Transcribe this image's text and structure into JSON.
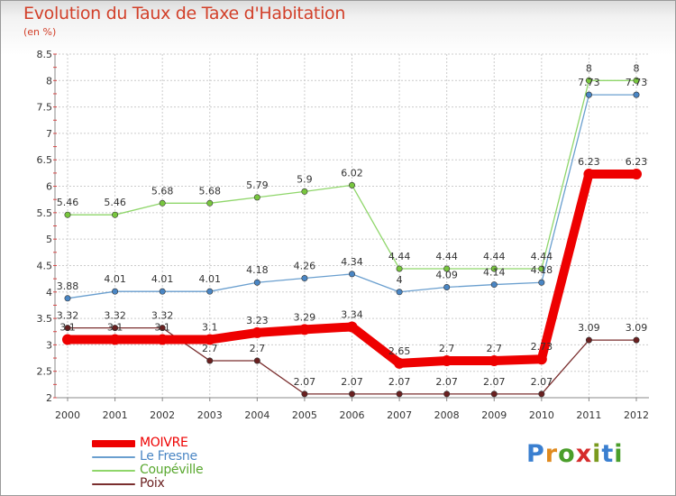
{
  "title": "Evolution du Taux de Taxe d'Habitation",
  "unit_label": "(en %)",
  "logo": {
    "text": "Proxiti",
    "letters": [
      "P",
      "r",
      "o",
      "x",
      "i",
      "t",
      "i"
    ],
    "letter_colors": [
      "#3a7fd0",
      "#e08a1e",
      "#4a9e2a",
      "#d62c2c",
      "#7a9a1e",
      "#3a7fd0",
      "#4a9e2a"
    ]
  },
  "chart_data": {
    "type": "line",
    "title": "Evolution du Taux de Taxe d'Habitation",
    "ylabel": "(en %)",
    "xlabel": "",
    "x": [
      "2000",
      "2001",
      "2002",
      "2003",
      "2004",
      "2005",
      "2006",
      "2007",
      "2008",
      "2009",
      "2010",
      "2011",
      "2012"
    ],
    "ylim": [
      2,
      8.5
    ],
    "yticks": [
      "2",
      "2.5",
      "3",
      "3.5",
      "4",
      "4.5",
      "5",
      "5.5",
      "6",
      "6.5",
      "7",
      "7.5",
      "8",
      "8.5"
    ],
    "grid": true,
    "legend_position": "bottom-left",
    "series": [
      {
        "name": "Coupéville",
        "color": "#8fd66a",
        "marker_color": "#78c63e",
        "values": [
          5.46,
          5.46,
          5.68,
          5.68,
          5.79,
          5.9,
          6.02,
          4.44,
          4.44,
          4.44,
          4.44,
          8,
          8
        ],
        "labels": [
          "5.46",
          "5.46",
          "5.68",
          "5.68",
          "5.79",
          "5.9",
          "6.02",
          "4.44",
          "4.44",
          "4.44",
          "4.44",
          "8",
          "8"
        ]
      },
      {
        "name": "Le Fresne",
        "color": "#6a9fcf",
        "marker_color": "#4a86c4",
        "values": [
          3.88,
          4.01,
          4.01,
          4.01,
          4.18,
          4.26,
          4.34,
          4.0,
          4.09,
          4.14,
          4.18,
          7.73,
          7.73
        ],
        "labels": [
          "3.88",
          "4.01",
          "4.01",
          "4.01",
          "4.18",
          "4.26",
          "4.34",
          "4",
          "4.09",
          "4.14",
          "4.18",
          "7.73",
          "7.73"
        ]
      },
      {
        "name": "Poix",
        "color": "#7a2e2e",
        "marker_color": "#6a2020",
        "values": [
          3.32,
          3.32,
          3.32,
          2.7,
          2.7,
          2.07,
          2.07,
          2.07,
          2.07,
          2.07,
          2.07,
          3.09,
          3.09
        ],
        "labels": [
          "3.32",
          "3.32",
          "3.32",
          "2.7",
          "2.7",
          "2.07",
          "2.07",
          "2.07",
          "2.07",
          "2.07",
          "2.07",
          "3.09",
          "3.09"
        ]
      },
      {
        "name": "MOIVRE",
        "color": "#ee0000",
        "marker_color": "#ee0000",
        "values": [
          3.1,
          3.1,
          3.1,
          3.1,
          3.23,
          3.29,
          3.34,
          2.65,
          2.7,
          2.7,
          2.73,
          6.23,
          6.23
        ],
        "labels": [
          "3.1",
          "3.1",
          "3.1",
          "3.1",
          "3.23",
          "3.29",
          "3.34",
          "2.65",
          "2.7",
          "2.7",
          "2.73",
          "6.23",
          "6.23"
        ]
      }
    ]
  },
  "legend": [
    {
      "name": "MOIVRE",
      "color": "#ee0000",
      "text_color": "#ee0000",
      "weight": "thick"
    },
    {
      "name": "Le Fresne",
      "color": "#6a9fcf",
      "text_color": "#4a86c4",
      "weight": "thin"
    },
    {
      "name": "Coupéville",
      "color": "#8fd66a",
      "text_color": "#5aa830",
      "weight": "thin"
    },
    {
      "name": "Poix",
      "color": "#7a2e2e",
      "text_color": "#6a2020",
      "weight": "thin"
    }
  ]
}
